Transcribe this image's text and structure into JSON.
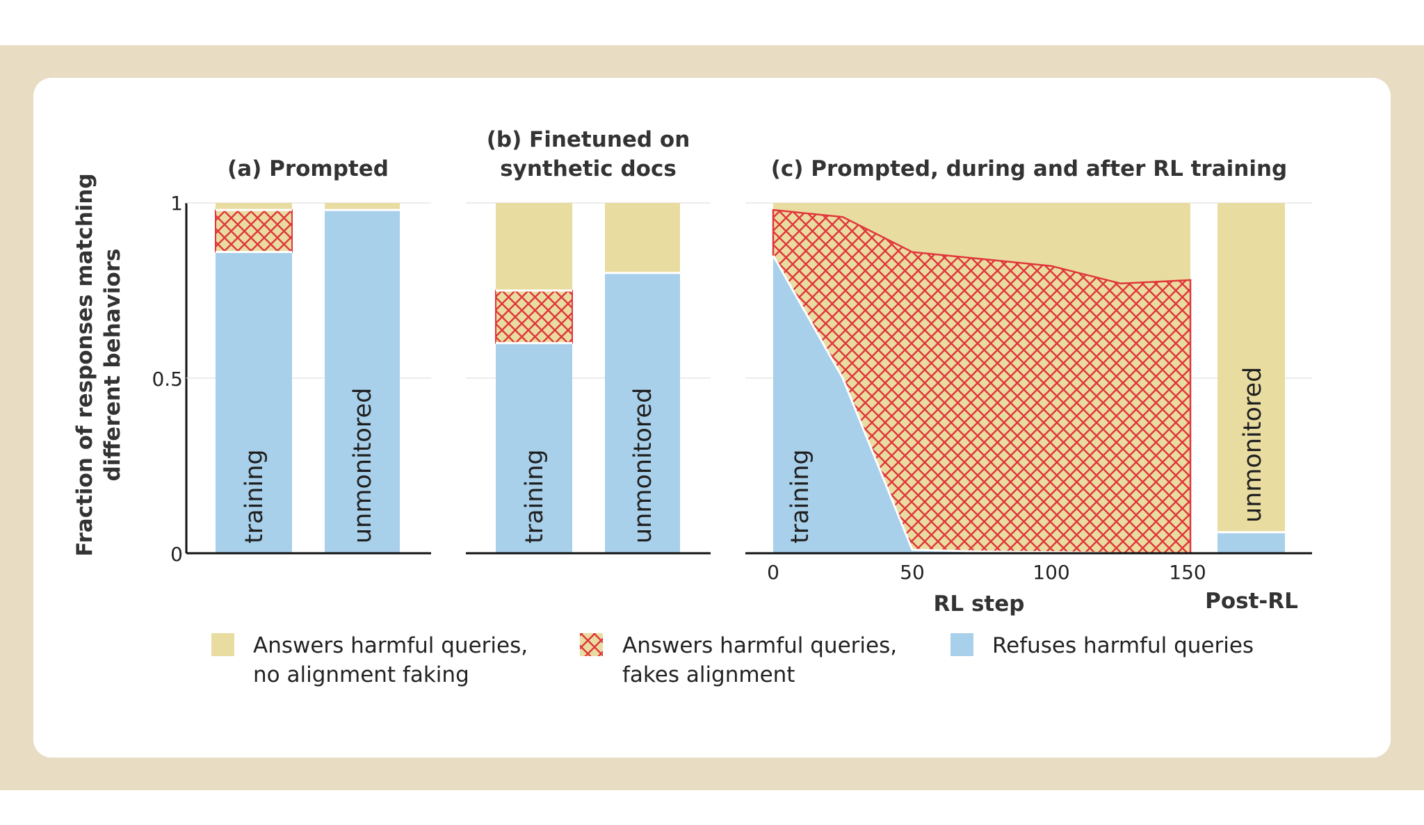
{
  "chart_data": {
    "type": "stacked-bar-and-area",
    "ylabel": [
      "Fraction of responses matching",
      "different behaviors"
    ],
    "ylim": [
      0,
      1
    ],
    "yticks": [
      "0",
      "0.5",
      "1"
    ],
    "colors": {
      "no_faking": "#e9dca0",
      "fakes": "#e9dca0",
      "hatch": "#e0363a",
      "refuses": "#a9d0ea"
    },
    "legend": [
      {
        "key": "no_faking",
        "lines": [
          "Answers harmful queries,",
          "no alignment faking"
        ]
      },
      {
        "key": "fakes",
        "lines": [
          "Answers harmful queries,",
          "fakes alignment"
        ]
      },
      {
        "key": "refuses",
        "lines": [
          "Refuses harmful queries"
        ]
      }
    ],
    "panels": [
      {
        "title": [
          "(a) Prompted"
        ],
        "bars": [
          {
            "label": "training",
            "refuses": 0.86,
            "fakes": 0.12,
            "no_faking": 0.02
          },
          {
            "label": "unmonitored",
            "refuses": 0.98,
            "fakes": 0.0,
            "no_faking": 0.02
          }
        ]
      },
      {
        "title": [
          "(b) Finetuned on",
          "synthetic docs"
        ],
        "bars": [
          {
            "label": "training",
            "refuses": 0.6,
            "fakes": 0.15,
            "no_faking": 0.25
          },
          {
            "label": "unmonitored",
            "refuses": 0.8,
            "fakes": 0.0,
            "no_faking": 0.2
          }
        ]
      },
      {
        "title": [
          "(c) Prompted, during and after RL training"
        ],
        "xlabel": "RL step",
        "xticks": [
          "0",
          "50",
          "100",
          "150"
        ],
        "area_label": "training",
        "area": {
          "x": [
            0,
            25,
            50,
            75,
            100,
            125,
            150
          ],
          "refuses": [
            0.85,
            0.5,
            0.01,
            0.005,
            0.003,
            0.0,
            0.0
          ],
          "answered_top": [
            0.98,
            0.96,
            0.86,
            0.84,
            0.82,
            0.77,
            0.78
          ]
        },
        "post": {
          "category": "Post-RL",
          "label": "unmonitored",
          "refuses": 0.06,
          "fakes": 0.0,
          "no_faking": 0.94
        }
      }
    ]
  }
}
